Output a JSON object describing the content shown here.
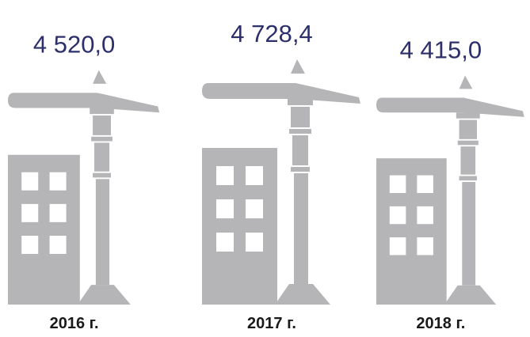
{
  "chart_data": {
    "type": "pictogram",
    "categories": [
      "2016 г.",
      "2017 г.",
      "2018 г."
    ],
    "values": [
      4520.0,
      4728.4,
      4415.0
    ],
    "value_labels": [
      "4 520,0",
      "4 728,4",
      "4 415,0"
    ],
    "color": "#b5b5b7",
    "label_color": "#2d2f6b"
  }
}
